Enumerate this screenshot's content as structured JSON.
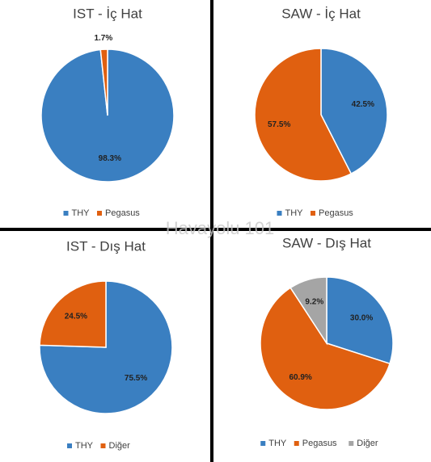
{
  "watermark": "Havayolu 101",
  "chart_data": [
    {
      "type": "pie",
      "title": "IST - İç Hat",
      "categories": [
        "THY",
        "Pegasus"
      ],
      "values": [
        98.3,
        1.7
      ],
      "value_labels": [
        "98.3%",
        "1.7%"
      ],
      "colors": [
        "#3a7fc1",
        "#e06010"
      ]
    },
    {
      "type": "pie",
      "title": "SAW - İç Hat",
      "categories": [
        "THY",
        "Pegasus"
      ],
      "values": [
        42.5,
        57.5
      ],
      "value_labels": [
        "42.5%",
        "57.5%"
      ],
      "colors": [
        "#3a7fc1",
        "#e06010"
      ]
    },
    {
      "type": "pie",
      "title": "IST - Dış Hat",
      "categories": [
        "THY",
        "Diğer"
      ],
      "values": [
        75.5,
        24.5
      ],
      "value_labels": [
        "75.5%",
        "24.5%"
      ],
      "colors": [
        "#3a7fc1",
        "#e06010"
      ]
    },
    {
      "type": "pie",
      "title": "SAW - Dış Hat",
      "categories": [
        "THY",
        "Pegasus",
        "Diğer"
      ],
      "values": [
        30.0,
        60.9,
        9.2
      ],
      "value_labels": [
        "30.0%",
        "60.9%",
        "9.2%"
      ],
      "colors": [
        "#3a7fc1",
        "#e06010",
        "#a5a5a5"
      ]
    }
  ]
}
